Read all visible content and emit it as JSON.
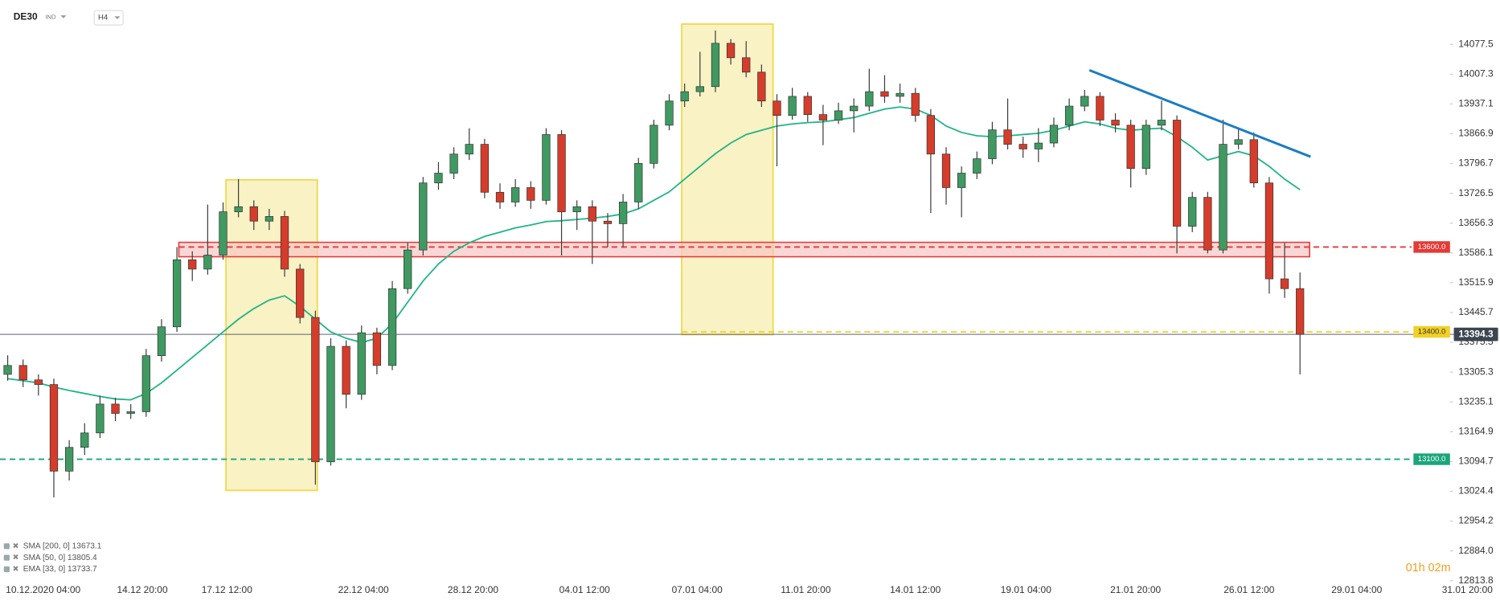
{
  "chart_data": {
    "type": "candlestick",
    "symbol": "DE30",
    "symbol_tag": "IND",
    "interval": "H4",
    "ylim": [
      12800,
      14182
    ],
    "yticks": [
      14077.5,
      14007.3,
      13937.1,
      13866.9,
      13796.7,
      13726.5,
      13656.3,
      13586.1,
      13515.9,
      13445.7,
      13375.5,
      13305.3,
      13235.1,
      13164.9,
      13094.7,
      13024.4,
      12954.2,
      {
        "value": 12884,
        "label": "12884.0"
      },
      12813.8
    ],
    "categories": [
      "10.12.2020 04:00",
      "14.12 20:00",
      "17.12 12:00",
      "22.12 04:00",
      "28.12 20:00",
      "04.01 12:00",
      "07.01 04:00",
      "11.01 20:00",
      "14.01 12:00",
      "19.01 04:00",
      "21.01 20:00",
      "26.01 12:00",
      "29.01 04:00",
      "31.01 20:00"
    ],
    "up_color": "#3f9a62",
    "down_color": "#d63c2a",
    "candles": [
      [
        13300,
        13345,
        13285,
        13321
      ],
      [
        13321,
        13335,
        13270,
        13287
      ],
      [
        13287,
        13300,
        13250,
        13276
      ],
      [
        13276,
        13290,
        13010,
        13072
      ],
      [
        13072,
        13145,
        13050,
        13128
      ],
      [
        13128,
        13185,
        13110,
        13162
      ],
      [
        13162,
        13250,
        13150,
        13230
      ],
      [
        13230,
        13245,
        13190,
        13208
      ],
      [
        13208,
        13230,
        13195,
        13212
      ],
      [
        13212,
        13360,
        13200,
        13344
      ],
      [
        13344,
        13430,
        13330,
        13412
      ],
      [
        13412,
        13600,
        13400,
        13570
      ],
      [
        13570,
        13590,
        13520,
        13548
      ],
      [
        13548,
        13700,
        13535,
        13581
      ],
      [
        13581,
        13705,
        13570,
        13683
      ],
      [
        13683,
        13760,
        13670,
        13695
      ],
      [
        13695,
        13710,
        13640,
        13661
      ],
      [
        13661,
        13690,
        13640,
        13672
      ],
      [
        13672,
        13685,
        13530,
        13548
      ],
      [
        13548,
        13560,
        13420,
        13434
      ],
      [
        13434,
        13450,
        13040,
        13094
      ],
      [
        13094,
        13385,
        13085,
        13366
      ],
      [
        13366,
        13380,
        13220,
        13253
      ],
      [
        13253,
        13415,
        13240,
        13398
      ],
      [
        13398,
        13410,
        13300,
        13321
      ],
      [
        13321,
        13520,
        13310,
        13502
      ],
      [
        13502,
        13610,
        13490,
        13593
      ],
      [
        13593,
        13765,
        13580,
        13751
      ],
      [
        13751,
        13800,
        13735,
        13774
      ],
      [
        13774,
        13835,
        13760,
        13819
      ],
      [
        13819,
        13880,
        13805,
        13842
      ],
      [
        13842,
        13855,
        13715,
        13729
      ],
      [
        13729,
        13750,
        13690,
        13706
      ],
      [
        13706,
        13760,
        13695,
        13740
      ],
      [
        13740,
        13755,
        13690,
        13710
      ],
      [
        13710,
        13880,
        13700,
        13865
      ],
      [
        13865,
        13875,
        13580,
        13683
      ],
      [
        13683,
        13710,
        13640,
        13695
      ],
      [
        13695,
        13710,
        13560,
        13661
      ],
      [
        13661,
        13680,
        13600,
        13655
      ],
      [
        13655,
        13725,
        13600,
        13706
      ],
      [
        13706,
        13810,
        13690,
        13797
      ],
      [
        13797,
        13900,
        13785,
        13887
      ],
      [
        13887,
        13960,
        13875,
        13944
      ],
      [
        13944,
        13985,
        13930,
        13966
      ],
      [
        13966,
        14060,
        13955,
        13978
      ],
      [
        13978,
        14110,
        13965,
        14080
      ],
      [
        14080,
        14090,
        14030,
        14046
      ],
      [
        14046,
        14085,
        14000,
        14012
      ],
      [
        14012,
        14030,
        13930,
        13944
      ],
      [
        13944,
        13960,
        13790,
        13910
      ],
      [
        13910,
        13975,
        13900,
        13955
      ],
      [
        13955,
        13965,
        13895,
        13912
      ],
      [
        13912,
        13935,
        13840,
        13899
      ],
      [
        13899,
        13940,
        13890,
        13921
      ],
      [
        13921,
        13950,
        13870,
        13932
      ],
      [
        13932,
        14020,
        13920,
        13966
      ],
      [
        13966,
        14005,
        13940,
        13955
      ],
      [
        13955,
        13985,
        13940,
        13962
      ],
      [
        13962,
        13975,
        13895,
        13910
      ],
      [
        13910,
        13925,
        13680,
        13819
      ],
      [
        13819,
        13835,
        13700,
        13740
      ],
      [
        13740,
        13790,
        13670,
        13774
      ],
      [
        13774,
        13825,
        13760,
        13808
      ],
      [
        13808,
        13895,
        13795,
        13876
      ],
      [
        13876,
        13950,
        13830,
        13842
      ],
      [
        13842,
        13860,
        13810,
        13831
      ],
      [
        13831,
        13880,
        13800,
        13845
      ],
      [
        13845,
        13905,
        13835,
        13887
      ],
      [
        13887,
        13950,
        13875,
        13932
      ],
      [
        13932,
        13970,
        13920,
        13955
      ],
      [
        13955,
        13965,
        13885,
        13899
      ],
      [
        13899,
        13915,
        13870,
        13887
      ],
      [
        13887,
        13900,
        13740,
        13785
      ],
      [
        13785,
        13900,
        13770,
        13887
      ],
      [
        13887,
        13945,
        13875,
        13899
      ],
      [
        13899,
        13910,
        13585,
        13649
      ],
      [
        13649,
        13730,
        13635,
        13717
      ],
      [
        13717,
        13730,
        13585,
        13593
      ],
      [
        13593,
        13900,
        13585,
        13842
      ],
      [
        13842,
        13880,
        13830,
        13853
      ],
      [
        13853,
        13870,
        13740,
        13751
      ],
      [
        13751,
        13765,
        13490,
        13525
      ],
      [
        13525,
        13610,
        13480,
        13502
      ],
      [
        13502,
        13540,
        13300,
        13394.3
      ]
    ],
    "indicators": [
      {
        "name": "SMA [200, 0] 13673.1"
      },
      {
        "name": "SMA [50, 0] 13805.4"
      },
      {
        "name": "EMA [33, 0] 13733.7",
        "color": "#1fb486",
        "values": [
          13290,
          13285,
          13280,
          13270,
          13262,
          13255,
          13248,
          13242,
          13240,
          13255,
          13280,
          13310,
          13340,
          13370,
          13400,
          13430,
          13455,
          13475,
          13485,
          13460,
          13430,
          13400,
          13385,
          13375,
          13385,
          13420,
          13470,
          13520,
          13560,
          13590,
          13610,
          13625,
          13635,
          13645,
          13652,
          13660,
          13662,
          13665,
          13668,
          13672,
          13678,
          13690,
          13710,
          13730,
          13760,
          13790,
          13820,
          13845,
          13865,
          13875,
          13885,
          13890,
          13893,
          13895,
          13900,
          13905,
          13915,
          13925,
          13930,
          13925,
          13910,
          13885,
          13870,
          13862,
          13860,
          13862,
          13865,
          13868,
          13875,
          13885,
          13895,
          13890,
          13880,
          13875,
          13878,
          13880,
          13860,
          13835,
          13805,
          13815,
          13825,
          13815,
          13790,
          13760,
          13735
        ]
      }
    ],
    "levels": [
      {
        "value": 13600,
        "label": "13600.0",
        "color": "#e53935"
      },
      {
        "value": 13400,
        "label": "13400.0",
        "color": "#f2d024"
      },
      {
        "value": 13100,
        "label": "13100.0",
        "color": "#1aa57a"
      }
    ],
    "last_price": 13394.3,
    "timer": "01h 02m"
  }
}
